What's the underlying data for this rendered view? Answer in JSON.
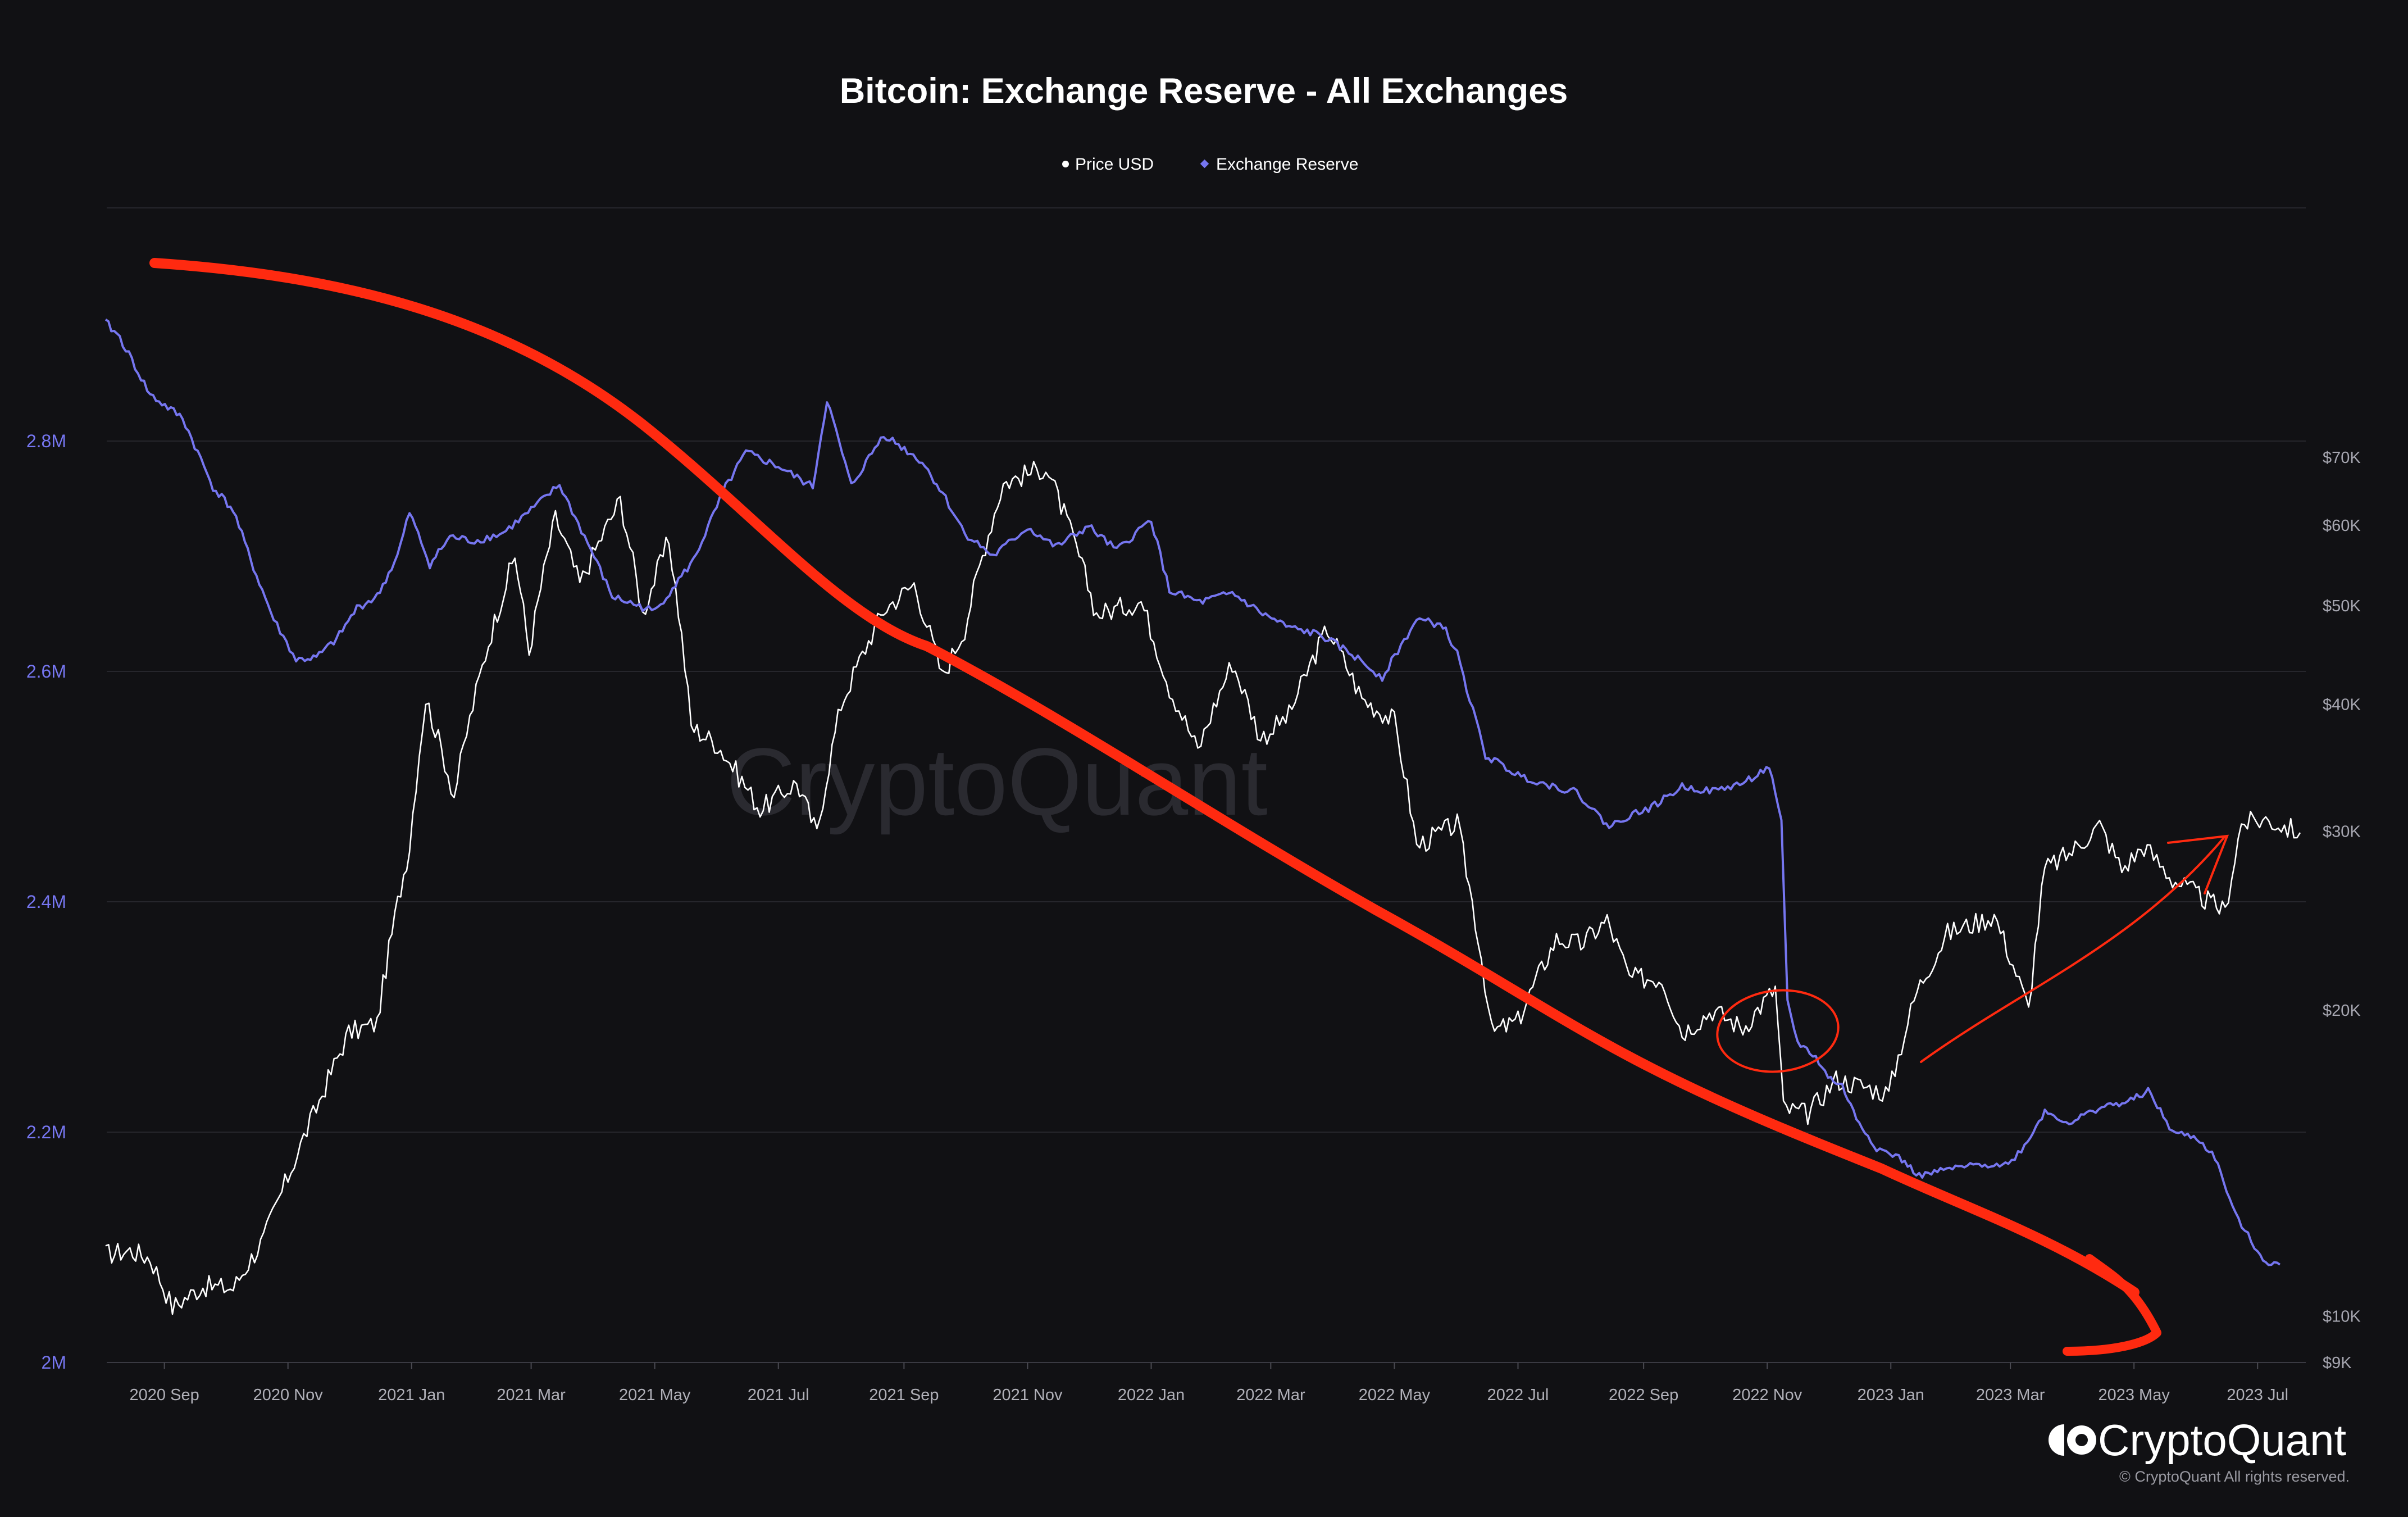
{
  "chart_data": {
    "type": "line",
    "title": "Bitcoin: Exchange Reserve - All Exchanges",
    "legend": {
      "placement": "top-center"
    },
    "watermark": "CryptoQuant",
    "brand": {
      "name": "CryptoQuant",
      "copyright": "© CryptoQuant All rights reserved."
    },
    "colors": {
      "background": "#111114",
      "price": "#ffffff",
      "reserve": "#7676f0",
      "annotation": "#ff2a10",
      "grid": "#26262c"
    },
    "grid": true,
    "x_axis": {
      "range": [
        "2020-08-03",
        "2023-07-22"
      ],
      "ticks": [
        {
          "date": "2020-09-01",
          "label": "2020 Sep"
        },
        {
          "date": "2020-11-01",
          "label": "2020 Nov"
        },
        {
          "date": "2021-01-01",
          "label": "2021 Jan"
        },
        {
          "date": "2021-03-01",
          "label": "2021 Mar"
        },
        {
          "date": "2021-05-01",
          "label": "2021 May"
        },
        {
          "date": "2021-07-01",
          "label": "2021 Jul"
        },
        {
          "date": "2021-09-01",
          "label": "2021 Sep"
        },
        {
          "date": "2021-11-01",
          "label": "2021 Nov"
        },
        {
          "date": "2022-01-01",
          "label": "2022 Jan"
        },
        {
          "date": "2022-03-01",
          "label": "2022 Mar"
        },
        {
          "date": "2022-05-01",
          "label": "2022 May"
        },
        {
          "date": "2022-07-01",
          "label": "2022 Jul"
        },
        {
          "date": "2022-09-01",
          "label": "2022 Sep"
        },
        {
          "date": "2022-11-01",
          "label": "2022 Nov"
        },
        {
          "date": "2023-01-01",
          "label": "2023 Jan"
        },
        {
          "date": "2023-03-01",
          "label": "2023 Mar"
        },
        {
          "date": "2023-05-01",
          "label": "2023 May"
        },
        {
          "date": "2023-07-01",
          "label": "2023 Jul"
        }
      ]
    },
    "y_left": {
      "name": "Exchange Reserve",
      "range": [
        2000000,
        3000000
      ],
      "ticks": [
        {
          "value": 2000000,
          "label": "2M"
        },
        {
          "value": 2200000,
          "label": "2.2M"
        },
        {
          "value": 2400000,
          "label": "2.4M"
        },
        {
          "value": 2600000,
          "label": "2.6M"
        },
        {
          "value": 2800000,
          "label": "2.8M"
        }
      ]
    },
    "y_right": {
      "name": "Price USD",
      "scale": "log",
      "range": [
        9000,
        80000
      ],
      "ticks": [
        {
          "value": 9000,
          "label": "$9K"
        },
        {
          "value": 10000,
          "label": "$10K"
        },
        {
          "value": 20000,
          "label": "$20K"
        },
        {
          "value": 30000,
          "label": "$30K"
        },
        {
          "value": 40000,
          "label": "$40K"
        },
        {
          "value": 50000,
          "label": "$50K"
        },
        {
          "value": 60000,
          "label": "$60K"
        },
        {
          "value": 70000,
          "label": "$70K"
        }
      ]
    },
    "series": [
      {
        "name": "Price USD",
        "axis": "right",
        "points": [
          [
            "2020-08-03",
            11500
          ],
          [
            "2020-08-15",
            11600
          ],
          [
            "2020-08-25",
            11400
          ],
          [
            "2020-09-05",
            10200
          ],
          [
            "2020-09-20",
            10700
          ],
          [
            "2020-10-05",
            10650
          ],
          [
            "2020-10-20",
            11900
          ],
          [
            "2020-11-01",
            13700
          ],
          [
            "2020-11-15",
            16000
          ],
          [
            "2020-12-01",
            19000
          ],
          [
            "2020-12-15",
            19400
          ],
          [
            "2020-12-31",
            29000
          ],
          [
            "2021-01-08",
            40500
          ],
          [
            "2021-01-22",
            32500
          ],
          [
            "2021-02-08",
            46000
          ],
          [
            "2021-02-21",
            56000
          ],
          [
            "2021-02-28",
            45000
          ],
          [
            "2021-03-13",
            61000
          ],
          [
            "2021-03-25",
            52500
          ],
          [
            "2021-04-14",
            63500
          ],
          [
            "2021-04-25",
            49000
          ],
          [
            "2021-05-08",
            58000
          ],
          [
            "2021-05-19",
            38000
          ],
          [
            "2021-06-01",
            36500
          ],
          [
            "2021-06-22",
            31500
          ],
          [
            "2021-07-10",
            33500
          ],
          [
            "2021-07-20",
            29800
          ],
          [
            "2021-08-01",
            40000
          ],
          [
            "2021-08-22",
            49500
          ],
          [
            "2021-09-06",
            52500
          ],
          [
            "2021-09-20",
            42500
          ],
          [
            "2021-10-01",
            47500
          ],
          [
            "2021-10-20",
            66000
          ],
          [
            "2021-11-10",
            68500
          ],
          [
            "2021-11-25",
            57000
          ],
          [
            "2021-12-05",
            49000
          ],
          [
            "2021-12-27",
            50500
          ],
          [
            "2022-01-10",
            41500
          ],
          [
            "2022-01-24",
            36000
          ],
          [
            "2022-02-10",
            44000
          ],
          [
            "2022-02-24",
            37000
          ],
          [
            "2022-03-10",
            39000
          ],
          [
            "2022-03-29",
            47500
          ],
          [
            "2022-04-15",
            40500
          ],
          [
            "2022-05-01",
            38500
          ],
          [
            "2022-05-12",
            29000
          ],
          [
            "2022-06-01",
            30500
          ],
          [
            "2022-06-13",
            22500
          ],
          [
            "2022-06-18",
            19000
          ],
          [
            "2022-07-01",
            19500
          ],
          [
            "2022-07-20",
            23500
          ],
          [
            "2022-08-01",
            23200
          ],
          [
            "2022-08-14",
            24500
          ],
          [
            "2022-08-25",
            21500
          ],
          [
            "2022-09-10",
            21500
          ],
          [
            "2022-09-20",
            19000
          ],
          [
            "2022-10-05",
            20000
          ],
          [
            "2022-10-20",
            19200
          ],
          [
            "2022-11-05",
            21000
          ],
          [
            "2022-11-09",
            16000
          ],
          [
            "2022-11-21",
            15800
          ],
          [
            "2022-12-05",
            17100
          ],
          [
            "2022-12-20",
            16800
          ],
          [
            "2022-12-31",
            16550
          ],
          [
            "2023-01-14",
            20900
          ],
          [
            "2023-01-29",
            23800
          ],
          [
            "2023-02-15",
            24500
          ],
          [
            "2023-02-21",
            24800
          ],
          [
            "2023-03-10",
            20000
          ],
          [
            "2023-03-18",
            27500
          ],
          [
            "2023-03-30",
            28500
          ],
          [
            "2023-04-14",
            30400
          ],
          [
            "2023-04-25",
            27500
          ],
          [
            "2023-05-06",
            29000
          ],
          [
            "2023-05-20",
            26900
          ],
          [
            "2023-06-05",
            25700
          ],
          [
            "2023-06-15",
            25000
          ],
          [
            "2023-06-23",
            30500
          ],
          [
            "2023-07-05",
            30800
          ],
          [
            "2023-07-22",
            29900
          ]
        ]
      },
      {
        "name": "Exchange Reserve",
        "axis": "left",
        "points": [
          [
            "2020-08-03",
            2903000
          ],
          [
            "2020-08-10",
            2890000
          ],
          [
            "2020-08-25",
            2840000
          ],
          [
            "2020-09-10",
            2820000
          ],
          [
            "2020-09-25",
            2760000
          ],
          [
            "2020-10-05",
            2740000
          ],
          [
            "2020-10-15",
            2690000
          ],
          [
            "2020-10-25",
            2645000
          ],
          [
            "2020-11-05",
            2610000
          ],
          [
            "2020-11-15",
            2612000
          ],
          [
            "2020-11-25",
            2628000
          ],
          [
            "2020-12-05",
            2655000
          ],
          [
            "2020-12-15",
            2665000
          ],
          [
            "2020-12-25",
            2700000
          ],
          [
            "2020-12-31",
            2738000
          ],
          [
            "2021-01-10",
            2693000
          ],
          [
            "2021-01-20",
            2717000
          ],
          [
            "2021-02-01",
            2713000
          ],
          [
            "2021-02-15",
            2720000
          ],
          [
            "2021-03-01",
            2740000
          ],
          [
            "2021-03-15",
            2762000
          ],
          [
            "2021-04-01",
            2700000
          ],
          [
            "2021-04-10",
            2665000
          ],
          [
            "2021-05-01",
            2652000
          ],
          [
            "2021-05-20",
            2696000
          ],
          [
            "2021-06-05",
            2760000
          ],
          [
            "2021-06-15",
            2790000
          ],
          [
            "2021-07-01",
            2778000
          ],
          [
            "2021-07-18",
            2760000
          ],
          [
            "2021-07-25",
            2836000
          ],
          [
            "2021-08-06",
            2761000
          ],
          [
            "2021-08-22",
            2806000
          ],
          [
            "2021-09-10",
            2782000
          ],
          [
            "2021-09-20",
            2755000
          ],
          [
            "2021-10-01",
            2720000
          ],
          [
            "2021-10-15",
            2700000
          ],
          [
            "2021-11-01",
            2725000
          ],
          [
            "2021-11-15",
            2708000
          ],
          [
            "2021-12-01",
            2726000
          ],
          [
            "2021-12-15",
            2705000
          ],
          [
            "2022-01-01",
            2732000
          ],
          [
            "2022-01-10",
            2670000
          ],
          [
            "2022-01-25",
            2660000
          ],
          [
            "2022-02-10",
            2668000
          ],
          [
            "2022-02-25",
            2650000
          ],
          [
            "2022-03-10",
            2638000
          ],
          [
            "2022-03-25",
            2632000
          ],
          [
            "2022-04-10",
            2615000
          ],
          [
            "2022-04-25",
            2595000
          ],
          [
            "2022-05-12",
            2645000
          ],
          [
            "2022-05-25",
            2640000
          ],
          [
            "2022-06-01",
            2615000
          ],
          [
            "2022-06-15",
            2527000
          ],
          [
            "2022-07-01",
            2510000
          ],
          [
            "2022-07-15",
            2502000
          ],
          [
            "2022-07-30",
            2495000
          ],
          [
            "2022-08-15",
            2465000
          ],
          [
            "2022-08-25",
            2475000
          ],
          [
            "2022-09-05",
            2482000
          ],
          [
            "2022-09-20",
            2500000
          ],
          [
            "2022-10-05",
            2496000
          ],
          [
            "2022-10-20",
            2503000
          ],
          [
            "2022-11-02",
            2517000
          ],
          [
            "2022-11-08",
            2468000
          ],
          [
            "2022-11-11",
            2313000
          ],
          [
            "2022-11-16",
            2278000
          ],
          [
            "2022-11-25",
            2265000
          ],
          [
            "2022-12-01",
            2248000
          ],
          [
            "2022-12-08",
            2240000
          ],
          [
            "2022-12-15",
            2212000
          ],
          [
            "2022-12-25",
            2186000
          ],
          [
            "2023-01-05",
            2178000
          ],
          [
            "2023-01-15",
            2162000
          ],
          [
            "2023-01-30",
            2168000
          ],
          [
            "2023-02-15",
            2172000
          ],
          [
            "2023-02-28",
            2172000
          ],
          [
            "2023-03-08",
            2188000
          ],
          [
            "2023-03-18",
            2218000
          ],
          [
            "2023-03-30",
            2208000
          ],
          [
            "2023-04-15",
            2222000
          ],
          [
            "2023-04-28",
            2226000
          ],
          [
            "2023-05-08",
            2236000
          ],
          [
            "2023-05-20",
            2200000
          ],
          [
            "2023-06-01",
            2195000
          ],
          [
            "2023-06-10",
            2178000
          ],
          [
            "2023-06-20",
            2128000
          ],
          [
            "2023-07-01",
            2097000
          ],
          [
            "2023-07-05",
            2087000
          ],
          [
            "2023-07-12",
            2085000
          ]
        ]
      }
    ]
  }
}
